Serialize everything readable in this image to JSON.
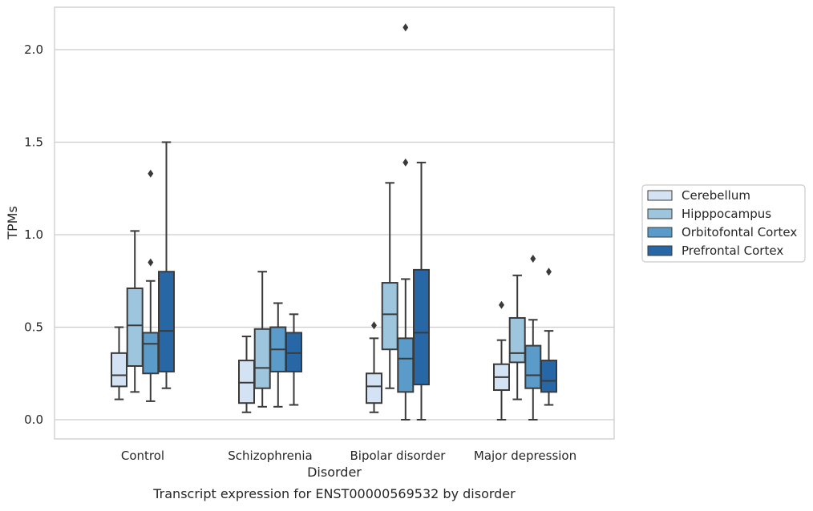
{
  "caption": "Transcript expression for ENST00000569532 by disorder",
  "chart_data": {
    "type": "box",
    "xlabel": "Disorder",
    "ylabel": "TPMs",
    "ylim": [
      -0.1,
      2.25
    ],
    "yticks": [
      "0.0",
      "0.5",
      "1.0",
      "1.5",
      "2.0"
    ],
    "grid": "horizontal",
    "legend_position": "right",
    "categories": [
      "Control",
      "Schizophrenia",
      "Bipolar disorder",
      "Major depression"
    ],
    "series": [
      {
        "name": "Cerebellum",
        "color": "#d4e3f3",
        "boxes": [
          {
            "whislo": 0.11,
            "q1": 0.18,
            "med": 0.24,
            "q3": 0.36,
            "whishi": 0.5,
            "fliers": []
          },
          {
            "whislo": 0.04,
            "q1": 0.09,
            "med": 0.2,
            "q3": 0.32,
            "whishi": 0.45,
            "fliers": []
          },
          {
            "whislo": 0.04,
            "q1": 0.09,
            "med": 0.18,
            "q3": 0.25,
            "whishi": 0.44,
            "fliers": [
              0.51
            ]
          },
          {
            "whislo": 0.0,
            "q1": 0.16,
            "med": 0.23,
            "q3": 0.3,
            "whishi": 0.43,
            "fliers": [
              0.62
            ]
          }
        ]
      },
      {
        "name": "Hipppocampus",
        "color": "#9dc5de",
        "boxes": [
          {
            "whislo": 0.15,
            "q1": 0.29,
            "med": 0.51,
            "q3": 0.71,
            "whishi": 1.02,
            "fliers": []
          },
          {
            "whislo": 0.07,
            "q1": 0.17,
            "med": 0.28,
            "q3": 0.49,
            "whishi": 0.8,
            "fliers": []
          },
          {
            "whislo": 0.17,
            "q1": 0.38,
            "med": 0.57,
            "q3": 0.74,
            "whishi": 1.28,
            "fliers": []
          },
          {
            "whislo": 0.11,
            "q1": 0.31,
            "med": 0.36,
            "q3": 0.55,
            "whishi": 0.78,
            "fliers": []
          }
        ]
      },
      {
        "name": "Orbitofontal Cortex",
        "color": "#5a9bc9",
        "boxes": [
          {
            "whislo": 0.1,
            "q1": 0.25,
            "med": 0.41,
            "q3": 0.47,
            "whishi": 0.75,
            "fliers": [
              0.85,
              1.33
            ]
          },
          {
            "whislo": 0.07,
            "q1": 0.26,
            "med": 0.38,
            "q3": 0.5,
            "whishi": 0.63,
            "fliers": []
          },
          {
            "whislo": 0.0,
            "q1": 0.15,
            "med": 0.33,
            "q3": 0.44,
            "whishi": 0.76,
            "fliers": [
              1.39,
              2.12
            ]
          },
          {
            "whislo": 0.0,
            "q1": 0.17,
            "med": 0.24,
            "q3": 0.4,
            "whishi": 0.54,
            "fliers": [
              0.87
            ]
          }
        ]
      },
      {
        "name": "Prefrontal Cortex",
        "color": "#2867a6",
        "boxes": [
          {
            "whislo": 0.17,
            "q1": 0.26,
            "med": 0.48,
            "q3": 0.8,
            "whishi": 1.5,
            "fliers": []
          },
          {
            "whislo": 0.08,
            "q1": 0.26,
            "med": 0.36,
            "q3": 0.47,
            "whishi": 0.57,
            "fliers": []
          },
          {
            "whislo": 0.0,
            "q1": 0.19,
            "med": 0.47,
            "q3": 0.81,
            "whishi": 1.39,
            "fliers": []
          },
          {
            "whislo": 0.08,
            "q1": 0.15,
            "med": 0.21,
            "q3": 0.32,
            "whishi": 0.48,
            "fliers": [
              0.8
            ]
          }
        ]
      }
    ]
  },
  "colors": {
    "grid": "#cccccc",
    "frame": "#cccccc",
    "line": "#3a3a3a"
  }
}
